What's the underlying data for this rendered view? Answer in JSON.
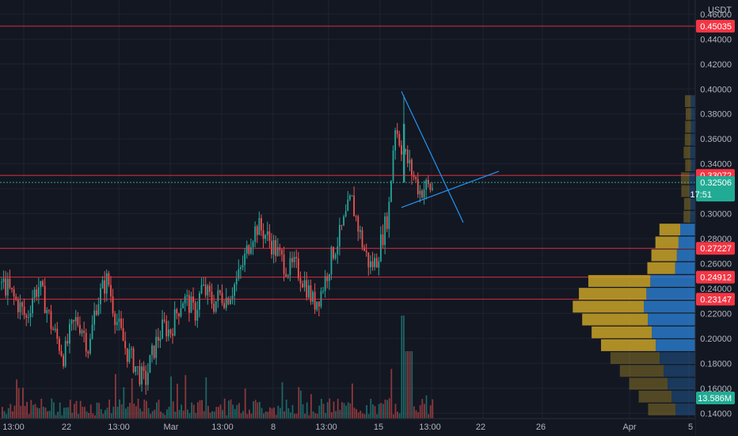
{
  "chart_data": {
    "type": "candlestick",
    "quote_currency": "USDT",
    "price_axis": {
      "min": 0.13,
      "max": 0.465,
      "ticks": [
        "0.46000",
        "0.44000",
        "0.42000",
        "0.40000",
        "0.38000",
        "0.36000",
        "0.34000",
        "0.32000",
        "0.30000",
        "0.28000",
        "0.26000",
        "0.24000",
        "0.22000",
        "0.20000",
        "0.18000",
        "0.16000",
        "0.14000"
      ]
    },
    "time_axis": {
      "ticks": [
        "13:00",
        "22",
        "13:00",
        "Mar",
        "13:00",
        "8",
        "13:00",
        "15",
        "13:00",
        "22",
        "26",
        "Apr",
        "5"
      ]
    },
    "horizontal_lines": [
      {
        "price": 0.45035,
        "label": "0.45035",
        "color": "#f23645"
      },
      {
        "price": 0.33072,
        "label": "0.33072",
        "color": "#f23645"
      },
      {
        "price": 0.27227,
        "label": "0.27227",
        "color": "#f23645"
      },
      {
        "price": 0.24912,
        "label": "0.24912",
        "color": "#f23645"
      },
      {
        "price": 0.23147,
        "label": "0.23147",
        "color": "#f23645"
      }
    ],
    "current_price": {
      "value": 0.32506,
      "label": "0.32506",
      "countdown": "17:51",
      "color": "#22ab94"
    },
    "volume": {
      "label": "13.586M",
      "color": "#22ab94"
    },
    "triangle": {
      "color": "#2196f3",
      "upper": [
        [
          "2021-03-17",
          0.398
        ],
        [
          "2021-03-20",
          0.293
        ]
      ],
      "lower": [
        [
          "2021-03-17",
          0.305
        ],
        [
          "2021-03-23",
          0.334
        ]
      ]
    },
    "price_path": [
      0.245,
      0.24,
      0.232,
      0.225,
      0.215,
      0.235,
      0.242,
      0.228,
      0.21,
      0.198,
      0.185,
      0.205,
      0.215,
      0.208,
      0.19,
      0.225,
      0.238,
      0.248,
      0.222,
      0.205,
      0.19,
      0.182,
      0.172,
      0.165,
      0.185,
      0.2,
      0.21,
      0.205,
      0.22,
      0.232,
      0.228,
      0.22,
      0.24,
      0.235,
      0.228,
      0.235,
      0.232,
      0.24,
      0.25,
      0.265,
      0.282,
      0.29,
      0.285,
      0.278,
      0.27,
      0.262,
      0.255,
      0.258,
      0.25,
      0.24,
      0.228,
      0.235,
      0.25,
      0.268,
      0.28,
      0.295,
      0.312,
      0.292,
      0.272,
      0.258,
      0.262,
      0.282,
      0.302,
      0.372,
      0.355,
      0.342,
      0.33,
      0.318,
      0.322,
      0.32
    ],
    "series_colors": {
      "up": "#26a69a",
      "down": "#ef5350"
    },
    "volume_profile": {
      "colors": {
        "up": "#c9a227",
        "down": "#2979c8"
      }
    }
  }
}
